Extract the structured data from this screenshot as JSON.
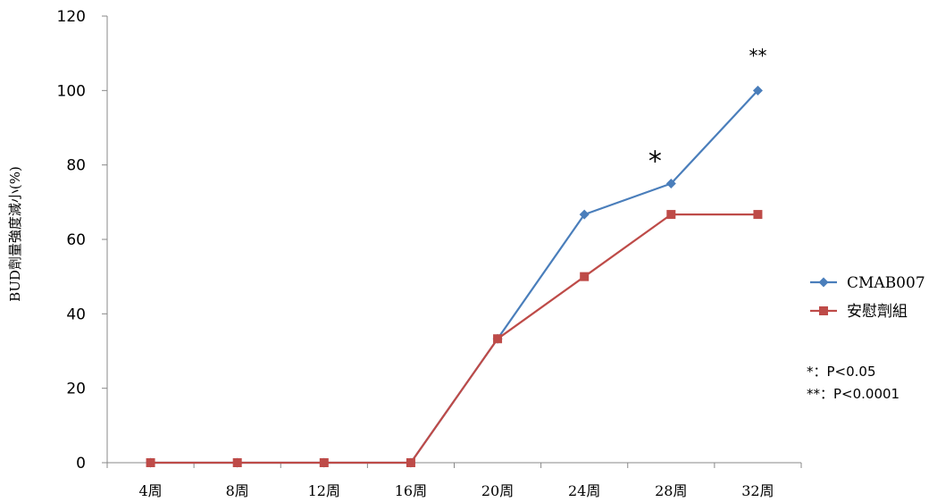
{
  "chart_data": {
    "type": "line",
    "categories": [
      "4周",
      "8周",
      "12周",
      "16周",
      "20周",
      "24周",
      "28周",
      "32周"
    ],
    "series": [
      {
        "name": "CMAB007",
        "color": "#4a7ebb",
        "marker": "diamond",
        "values": [
          0,
          0,
          0,
          0,
          33.3,
          66.7,
          75,
          100
        ]
      },
      {
        "name": "安慰劑組",
        "color": "#be4b48",
        "marker": "square",
        "values": [
          0,
          0,
          0,
          0,
          33.3,
          50,
          66.7,
          66.7
        ]
      }
    ],
    "ylabel": "BUD劑量強度減小(%)",
    "xlabel": "",
    "ylim": [
      0,
      120
    ],
    "yticks": [
      0,
      20,
      40,
      60,
      80,
      100,
      120
    ],
    "grid": false,
    "legend_position": "right",
    "annotations": [
      {
        "text": "*",
        "category": "28周",
        "y": 82
      },
      {
        "text": "**",
        "category": "32周",
        "y": 110
      }
    ],
    "notes": [
      "*：P<0.05",
      "**：P<0.0001"
    ]
  }
}
